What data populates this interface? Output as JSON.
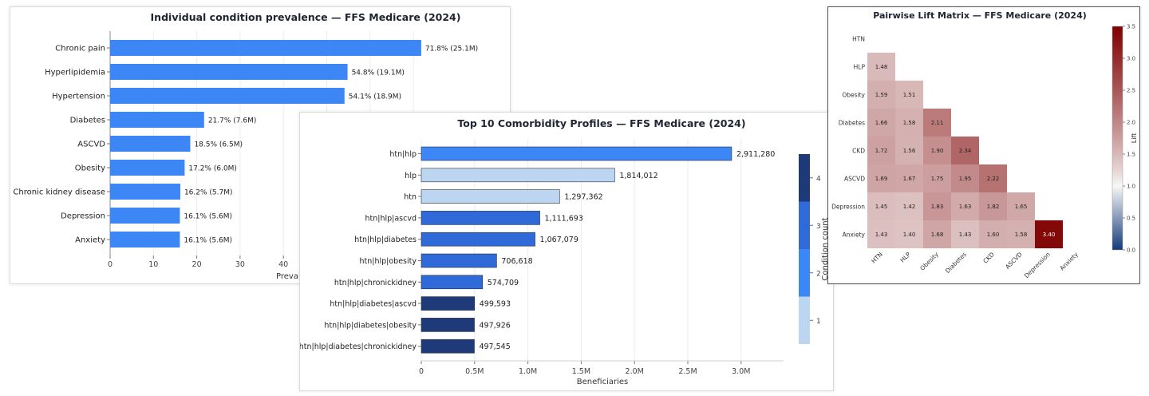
{
  "colors": {
    "prevalence_bar": "#3d86f6",
    "count_4": "#1e3a78",
    "count_3": "#2f6ad8",
    "count_2": "#3d86f6",
    "count_1": "#bcd6f2",
    "lift_high": "#7f0000",
    "lift_low": "#143a7a",
    "lift_mid": "#f7f7f7"
  },
  "chart_data": [
    {
      "type": "bar",
      "orientation": "horizontal",
      "title": "Individual condition prevalence — FFS Medicare (2024)",
      "xlabel": "Preval",
      "ylabel": "",
      "categories": [
        "Chronic pain",
        "Hyperlipidemia",
        "Hypertension",
        "Diabetes",
        "ASCVD",
        "Obesity",
        "Chronic kidney disease",
        "Depression",
        "Anxiety"
      ],
      "values": [
        71.8,
        54.8,
        54.1,
        21.7,
        18.5,
        17.2,
        16.2,
        16.1,
        16.1
      ],
      "data_labels": [
        "71.8% (25.1M)",
        "54.8% (19.1M)",
        "54.1% (18.9M)",
        "21.7% (7.6M)",
        "18.5% (6.5M)",
        "17.2% (6.0M)",
        "16.2% (5.7M)",
        "16.1% (5.6M)",
        "16.1% (5.6M)"
      ],
      "xticks": [
        0,
        10,
        20,
        30,
        40
      ],
      "xlim": [
        0,
        80
      ],
      "grid": "vertical"
    },
    {
      "type": "bar",
      "orientation": "horizontal",
      "title": "Top 10 Comorbidity Profiles — FFS Medicare (2024)",
      "xlabel": "Beneficiaries",
      "ylabel": "",
      "categories": [
        "htn|hlp",
        "hlp",
        "htn",
        "htn|hlp|ascvd",
        "htn|hlp|diabetes",
        "htn|hlp|obesity",
        "htn|hlp|chronickidney",
        "htn|hlp|diabetes|ascvd",
        "htn|hlp|diabetes|obesity",
        "htn|hlp|diabetes|chronickidney"
      ],
      "values": [
        2911280,
        1814012,
        1297362,
        1111693,
        1067079,
        706618,
        574709,
        499593,
        497926,
        497545
      ],
      "data_labels": [
        "2,911,280",
        "1,814,012",
        "1,297,362",
        "1,111,693",
        "1,067,079",
        "706,618",
        "574,709",
        "499,593",
        "497,926",
        "497,545"
      ],
      "condition_count": [
        2,
        1,
        1,
        3,
        3,
        3,
        3,
        4,
        4,
        4
      ],
      "xticks": [
        0,
        500000,
        1000000,
        1500000,
        2000000,
        2500000,
        3000000
      ],
      "xtick_labels": [
        "0",
        "0.5M",
        "1.0M",
        "1.5M",
        "2.0M",
        "2.5M",
        "3.0M"
      ],
      "xlim": [
        0,
        3400000
      ],
      "colorbar": {
        "label": "Condition count",
        "ticks": [
          "1",
          "2",
          "3",
          "4"
        ]
      },
      "grid": "vertical"
    },
    {
      "type": "heatmap",
      "title": "Pairwise Lift Matrix — FFS Medicare (2024)",
      "labels": [
        "HTN",
        "HLP",
        "Obesity",
        "Diabetes",
        "CKD",
        "ASCVD",
        "Depression",
        "Anxiety"
      ],
      "lower_triangle": [
        [],
        [
          "1.48"
        ],
        [
          "1.59",
          "1.51"
        ],
        [
          "1.66",
          "1.58",
          "2.11"
        ],
        [
          "1.72",
          "1.56",
          "1.90",
          "2.34"
        ],
        [
          "1.69",
          "1.67",
          "1.75",
          "1.95",
          "2.22"
        ],
        [
          "1.45",
          "1.42",
          "1.83",
          "1.63",
          "1.82",
          "1.65"
        ],
        [
          "1.43",
          "1.40",
          "1.68",
          "1.43",
          "1.60",
          "1.58",
          "3.40"
        ]
      ],
      "colorbar": {
        "label": "Lift",
        "ticks": [
          0.0,
          0.5,
          1.0,
          1.5,
          2.0,
          2.5,
          3.0,
          3.5
        ],
        "tick_labels": [
          "0.0",
          "0.5",
          "1.0",
          "1.5",
          "2.0",
          "2.5",
          "3.0",
          "3.5"
        ],
        "range": [
          0,
          3.5
        ]
      }
    }
  ]
}
